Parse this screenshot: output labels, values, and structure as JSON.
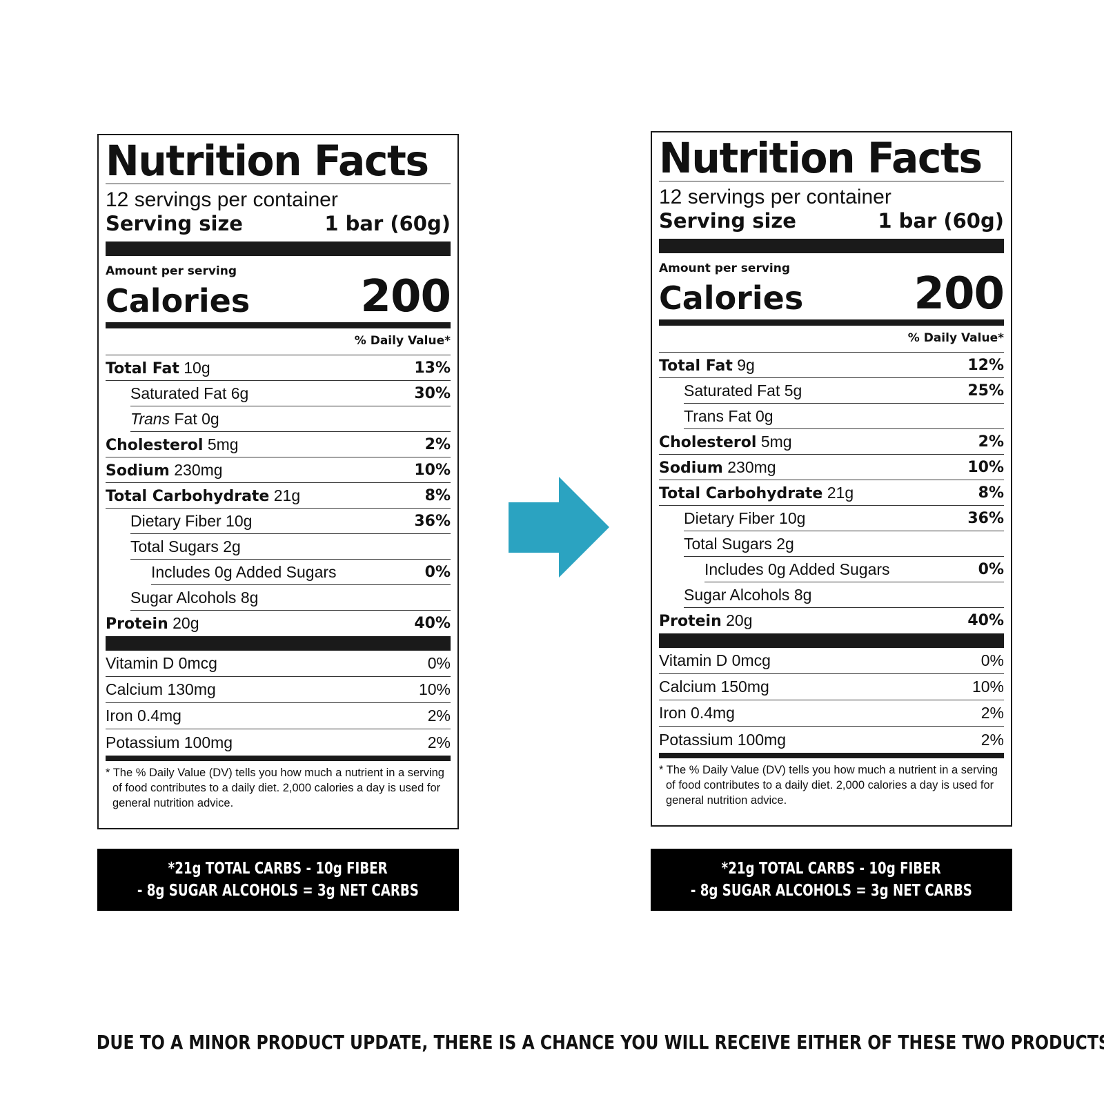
{
  "labels": [
    {
      "title": "Nutrition Facts",
      "servings": "12 servings per container",
      "serving_size_label": "Serving size",
      "serving_size_value": "1 bar (60g)",
      "amount_per_serving": "Amount per serving",
      "calories_label": "Calories",
      "calories_value": "200",
      "dv_header": "% Daily Value*",
      "rows": [
        {
          "name": "Total Fat",
          "amount": "10g",
          "pct": "13%"
        },
        {
          "name": "Saturated Fat",
          "amount": "6g",
          "pct": "30%"
        },
        {
          "name": "Trans",
          "amount": "Fat 0g",
          "pct": ""
        },
        {
          "name": "Cholesterol",
          "amount": "5mg",
          "pct": "2%"
        },
        {
          "name": "Sodium",
          "amount": "230mg",
          "pct": "10%"
        },
        {
          "name": "Total Carbohydrate",
          "amount": "21g",
          "pct": "8%"
        },
        {
          "name": "Dietary Fiber",
          "amount": "10g",
          "pct": "36%"
        },
        {
          "name": "Total Sugars",
          "amount": "2g",
          "pct": ""
        },
        {
          "name": "Includes 0g Added Sugars",
          "amount": "",
          "pct": "0%"
        },
        {
          "name": "Sugar Alcohols",
          "amount": "8g",
          "pct": ""
        },
        {
          "name": "Protein",
          "amount": "20g",
          "pct": "40%"
        }
      ],
      "vitamins": [
        {
          "name": "Vitamin D 0mcg",
          "pct": "0%"
        },
        {
          "name": "Calcium 130mg",
          "pct": "10%"
        },
        {
          "name": "Iron 0.4mg",
          "pct": "2%"
        },
        {
          "name": "Potassium 100mg",
          "pct": "2%"
        }
      ],
      "footnote": "* The % Daily Value (DV) tells you how much a nutrient in a serving of food contributes to a daily diet. 2,000 calories a day is used for general nutrition advice.",
      "carbs_line1": "*21g TOTAL CARBS - 10g FIBER",
      "carbs_line2": "- 8g SUGAR ALCOHOLS = 3g NET CARBS"
    },
    {
      "title": "Nutrition Facts",
      "servings": "12 servings per container",
      "serving_size_label": "Serving size",
      "serving_size_value": "1 bar (60g)",
      "amount_per_serving": "Amount per serving",
      "calories_label": "Calories",
      "calories_value": "200",
      "dv_header": "% Daily Value*",
      "rows": [
        {
          "name": "Total Fat",
          "amount": "9g",
          "pct": "12%"
        },
        {
          "name": "Saturated Fat",
          "amount": "5g",
          "pct": "25%"
        },
        {
          "name": "Trans",
          "amount": "Fat 0g",
          "pct": ""
        },
        {
          "name": "Cholesterol",
          "amount": "5mg",
          "pct": "2%"
        },
        {
          "name": "Sodium",
          "amount": "230mg",
          "pct": "10%"
        },
        {
          "name": "Total Carbohydrate",
          "amount": "21g",
          "pct": "8%"
        },
        {
          "name": "Dietary Fiber",
          "amount": "10g",
          "pct": "36%"
        },
        {
          "name": "Total Sugars",
          "amount": "2g",
          "pct": ""
        },
        {
          "name": "Includes 0g Added Sugars",
          "amount": "",
          "pct": "0%"
        },
        {
          "name": "Sugar Alcohols",
          "amount": "8g",
          "pct": ""
        },
        {
          "name": "Protein",
          "amount": "20g",
          "pct": "40%"
        }
      ],
      "vitamins": [
        {
          "name": "Vitamin D 0mcg",
          "pct": "0%"
        },
        {
          "name": "Calcium 150mg",
          "pct": "10%"
        },
        {
          "name": "Iron 0.4mg",
          "pct": "2%"
        },
        {
          "name": "Potassium 100mg",
          "pct": "2%"
        }
      ],
      "footnote": "* The % Daily Value (DV) tells you how much a nutrient in a serving of food contributes to a daily diet. 2,000 calories a day is used for general nutrition advice.",
      "carbs_line1": "*21g TOTAL CARBS - 10g FIBER",
      "carbs_line2": "- 8g SUGAR ALCOHOLS = 3g NET CARBS"
    }
  ],
  "arrow": {
    "icon": "right-arrow-icon",
    "color": "#2ba3c1"
  },
  "bottom_note": "DUE TO A MINOR PRODUCT UPDATE, THERE IS A CHANCE YOU WILL RECEIVE EITHER OF THESE TWO PRODUCTS"
}
